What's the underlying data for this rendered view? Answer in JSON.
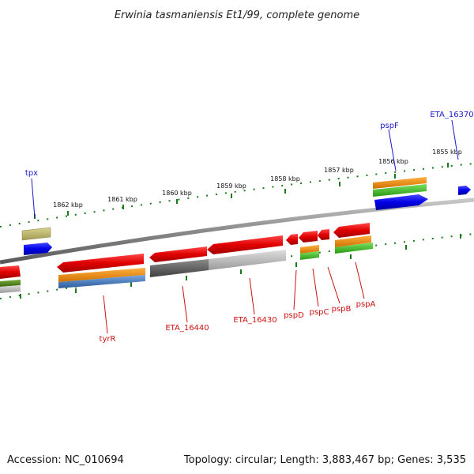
{
  "title": "Erwinia tasmaniensis Et1/99, complete genome",
  "footer": {
    "accession": "Accession: NC_010694",
    "summary": "Topology: circular; Length: 3,883,467 bp; Genes: 3,535"
  },
  "scale_ticks": [
    "1862 kbp",
    "1861 kbp",
    "1860 kbp",
    "1859 kbp",
    "1858 kbp",
    "1857 kbp",
    "1856 kbp",
    "1855 kbp"
  ],
  "forward_genes": [
    "tpx",
    "pspF",
    "ETA_16370"
  ],
  "reverse_genes": [
    "tyrR",
    "ETA_16440",
    "ETA_16430",
    "pspD",
    "pspC",
    "pspB",
    "pspA"
  ],
  "colors": {
    "cds_red": "#e00000",
    "gene_blue": "#0000e8",
    "cog_orange": "#f08800",
    "cog_green": "#44bb22",
    "cog_tan": "#bdb76b",
    "cog_olive": "#5a8a1a",
    "cog_steel": "#4a7fc0",
    "cog_grey_dark": "#5e5e5e",
    "cog_grey_light": "#bdbdbd",
    "tick_green": "#1a7a1a",
    "backbone": "#8a8a8a"
  }
}
